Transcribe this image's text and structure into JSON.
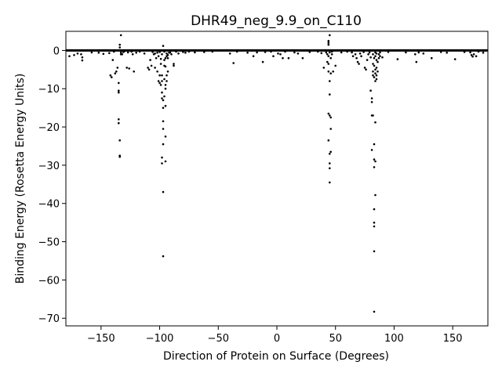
{
  "chart_data": {
    "type": "scatter",
    "title": "DHR49_neg_9.9_on_C110",
    "xlabel": "Direction of Protein on Surface (Degrees)",
    "ylabel": "Binding Energy (Rosetta Energy Units)",
    "xlim": [
      -180,
      180
    ],
    "ylim": [
      -72,
      5
    ],
    "xticks": [
      -150,
      -100,
      -50,
      0,
      50,
      100,
      150
    ],
    "xtick_labels": [
      "−150",
      "−100",
      "−50",
      "0",
      "50",
      "100",
      "150"
    ],
    "yticks": [
      0,
      -10,
      -20,
      -30,
      -40,
      -50,
      -60,
      -70
    ],
    "ytick_labels": [
      "0",
      "−10",
      "−20",
      "−30",
      "−40",
      "−50",
      "−60",
      "−70"
    ],
    "grid": false,
    "marker_color": "#000000",
    "baseline": {
      "y": 0,
      "x_range": [
        -180,
        180
      ]
    },
    "series": [
      {
        "points": [
          [
            -177,
            -1.5
          ],
          [
            -173,
            -1.2
          ],
          [
            -170,
            -0.8
          ],
          [
            -167,
            -1.0
          ],
          [
            -166,
            -1.8
          ],
          [
            -166,
            -2.6
          ],
          [
            -158,
            -0.5
          ],
          [
            -152,
            -0.6
          ],
          [
            -148,
            -0.9
          ],
          [
            -143,
            -0.7
          ],
          [
            -142,
            -6.5
          ],
          [
            -141,
            -7.0
          ],
          [
            -140,
            -2.5
          ],
          [
            -139,
            -0.3
          ],
          [
            -138,
            -6.0
          ],
          [
            -137,
            -5.5
          ],
          [
            -136,
            -4.5
          ],
          [
            -135,
            -8.5
          ],
          [
            -135,
            -10.5
          ],
          [
            -135,
            -11.0
          ],
          [
            -135,
            -18.0
          ],
          [
            -135,
            -19.0
          ],
          [
            -134,
            -23.5
          ],
          [
            -134,
            -27.5
          ],
          [
            -134,
            -27.8
          ],
          [
            -134,
            1.5
          ],
          [
            -134,
            0.8
          ],
          [
            -133,
            4.0
          ],
          [
            -133,
            -1.0
          ],
          [
            -133,
            -0.5
          ],
          [
            -132,
            -1.0
          ],
          [
            -131,
            -0.4
          ],
          [
            -130,
            -0.2
          ],
          [
            -128,
            -4.5
          ],
          [
            -127,
            -0.5
          ],
          [
            -126,
            -4.7
          ],
          [
            -124,
            -0.3
          ],
          [
            -123,
            -1.0
          ],
          [
            -122,
            -5.5
          ],
          [
            -120,
            -0.6
          ],
          [
            -117,
            -0.3
          ],
          [
            -113,
            -0.8
          ],
          [
            -110,
            -4.5
          ],
          [
            -109,
            -5.0
          ],
          [
            -108,
            -2.5
          ],
          [
            -107,
            -4.0
          ],
          [
            -106,
            -0.4
          ],
          [
            -105,
            -1.0
          ],
          [
            -104,
            -0.8
          ],
          [
            -104,
            -4.5
          ],
          [
            -103,
            -2.0
          ],
          [
            -102,
            -0.6
          ],
          [
            -102,
            -5.5
          ],
          [
            -101,
            -8.0
          ],
          [
            -101,
            -1.5
          ],
          [
            -100,
            -6.5
          ],
          [
            -100,
            -8.5
          ],
          [
            -100,
            -0.4
          ],
          [
            -99,
            -3.5
          ],
          [
            -99,
            -9.0
          ],
          [
            -99,
            -2.2
          ],
          [
            -98,
            -1.0
          ],
          [
            -98,
            -6.5
          ],
          [
            -98,
            -8.0
          ],
          [
            -98,
            -11.0
          ],
          [
            -98,
            -12.5
          ],
          [
            -98,
            -28.0
          ],
          [
            -98,
            -29.5
          ],
          [
            -97,
            -13.0
          ],
          [
            -97,
            -15.0
          ],
          [
            -97,
            -18.5
          ],
          [
            -97,
            -20.5
          ],
          [
            -97,
            -24.5
          ],
          [
            -97,
            -37.0
          ],
          [
            -97,
            -53.8
          ],
          [
            -97,
            1.2
          ],
          [
            -96,
            -0.3
          ],
          [
            -96,
            -2.5
          ],
          [
            -96,
            -4.0
          ],
          [
            -96,
            -7.5
          ],
          [
            -96,
            -12.0
          ],
          [
            -95,
            -4.2
          ],
          [
            -95,
            -2.0
          ],
          [
            -95,
            -9.0
          ],
          [
            -95,
            -10.0
          ],
          [
            -95,
            -14.5
          ],
          [
            -95,
            -22.5
          ],
          [
            -95,
            -29.0
          ],
          [
            -94,
            -1.5
          ],
          [
            -94,
            -6.5
          ],
          [
            -94,
            -8.0
          ],
          [
            -94,
            -0.8
          ],
          [
            -93,
            -2.0
          ],
          [
            -93,
            -5.5
          ],
          [
            -93,
            -1.2
          ],
          [
            -92,
            -0.6
          ],
          [
            -91,
            -0.5
          ],
          [
            -90,
            -1.0
          ],
          [
            -88,
            -3.5
          ],
          [
            -88,
            -4.0
          ],
          [
            -86,
            -0.3
          ],
          [
            -84,
            -0.8
          ],
          [
            -80,
            -0.4
          ],
          [
            -78,
            -0.6
          ],
          [
            -75,
            -0.3
          ],
          [
            -70,
            -0.5
          ],
          [
            -62,
            -0.4
          ],
          [
            -55,
            -0.3
          ],
          [
            -40,
            -0.8
          ],
          [
            -37,
            -3.3
          ],
          [
            -34,
            -0.3
          ],
          [
            -25,
            -0.6
          ],
          [
            -20,
            -1.5
          ],
          [
            -17,
            -0.5
          ],
          [
            -12,
            -3.0
          ],
          [
            -10,
            -0.4
          ],
          [
            -5,
            -0.3
          ],
          [
            -3,
            -1.5
          ],
          [
            1,
            -0.8
          ],
          [
            3,
            -1.0
          ],
          [
            5,
            -2.0
          ],
          [
            7,
            -0.3
          ],
          [
            10,
            -2.0
          ],
          [
            15,
            -0.5
          ],
          [
            18,
            -0.8
          ],
          [
            22,
            -2.0
          ],
          [
            28,
            -0.4
          ],
          [
            35,
            -0.3
          ],
          [
            38,
            -0.7
          ],
          [
            40,
            -4.5
          ],
          [
            42,
            -0.5
          ],
          [
            43,
            -3.0
          ],
          [
            43,
            -1.0
          ],
          [
            44,
            2.0
          ],
          [
            44,
            2.5
          ],
          [
            44,
            1.5
          ],
          [
            44,
            -1.5
          ],
          [
            44,
            -3.5
          ],
          [
            44,
            -5.5
          ],
          [
            44,
            -16.5
          ],
          [
            44,
            -23.5
          ],
          [
            45,
            -8.0
          ],
          [
            45,
            -11.5
          ],
          [
            45,
            -17.0
          ],
          [
            45,
            -27.0
          ],
          [
            45,
            -29.5
          ],
          [
            45,
            -30.8
          ],
          [
            45,
            -34.5
          ],
          [
            45,
            4.0
          ],
          [
            45,
            -0.5
          ],
          [
            46,
            -2.0
          ],
          [
            46,
            -6.0
          ],
          [
            46,
            -20.5
          ],
          [
            46,
            -26.5
          ],
          [
            46,
            -17.5
          ],
          [
            47,
            -1.0
          ],
          [
            47,
            -0.3
          ],
          [
            48,
            -5.5
          ],
          [
            50,
            -4.0
          ],
          [
            55,
            -0.5
          ],
          [
            60,
            -0.3
          ],
          [
            64,
            -0.5
          ],
          [
            65,
            -1.5
          ],
          [
            67,
            -1.0
          ],
          [
            68,
            -2.0
          ],
          [
            69,
            -3.0
          ],
          [
            70,
            -3.5
          ],
          [
            71,
            -0.8
          ],
          [
            72,
            -1.5
          ],
          [
            74,
            -0.4
          ],
          [
            75,
            -4.5
          ],
          [
            76,
            -5.0
          ],
          [
            77,
            -2.5
          ],
          [
            78,
            -1.0
          ],
          [
            79,
            -0.5
          ],
          [
            80,
            -1.8
          ],
          [
            80,
            -10.5
          ],
          [
            81,
            -12.5
          ],
          [
            81,
            -13.5
          ],
          [
            81,
            -17.0
          ],
          [
            81,
            -26.0
          ],
          [
            82,
            -1.0
          ],
          [
            82,
            -3.5
          ],
          [
            82,
            -5.5
          ],
          [
            82,
            -6.5
          ],
          [
            82,
            -17.0
          ],
          [
            83,
            -4.0
          ],
          [
            83,
            -2.0
          ],
          [
            83,
            -7.0
          ],
          [
            83,
            -24.5
          ],
          [
            83,
            -28.5
          ],
          [
            83,
            -30.5
          ],
          [
            83,
            -41.5
          ],
          [
            83,
            -45.0
          ],
          [
            83,
            -46.0
          ],
          [
            83,
            -52.5
          ],
          [
            83,
            -68.3
          ],
          [
            84,
            -1.5
          ],
          [
            84,
            -5.0
          ],
          [
            84,
            -6.0
          ],
          [
            84,
            -8.0
          ],
          [
            84,
            -18.8
          ],
          [
            84,
            -29.0
          ],
          [
            84,
            -37.8
          ],
          [
            84,
            -0.5
          ],
          [
            85,
            -2.5
          ],
          [
            85,
            -4.5
          ],
          [
            85,
            -6.5
          ],
          [
            85,
            -7.5
          ],
          [
            85,
            -0.8
          ],
          [
            86,
            -3.0
          ],
          [
            86,
            -5.5
          ],
          [
            87,
            -1.0
          ],
          [
            87,
            -2.0
          ],
          [
            88,
            -0.5
          ],
          [
            88,
            -1.5
          ],
          [
            90,
            -1.8
          ],
          [
            95,
            -0.4
          ],
          [
            103,
            -2.3
          ],
          [
            110,
            -0.5
          ],
          [
            118,
            -1.0
          ],
          [
            119,
            -3.0
          ],
          [
            121,
            -0.5
          ],
          [
            125,
            -0.8
          ],
          [
            132,
            -2.0
          ],
          [
            140,
            -0.4
          ],
          [
            145,
            -0.6
          ],
          [
            152,
            -2.3
          ],
          [
            160,
            -0.4
          ],
          [
            165,
            -0.5
          ],
          [
            166,
            -1.2
          ],
          [
            167,
            -1.6
          ],
          [
            168,
            -1.0
          ],
          [
            170,
            -1.5
          ],
          [
            172,
            -0.3
          ],
          [
            176,
            -0.6
          ]
        ]
      }
    ]
  }
}
